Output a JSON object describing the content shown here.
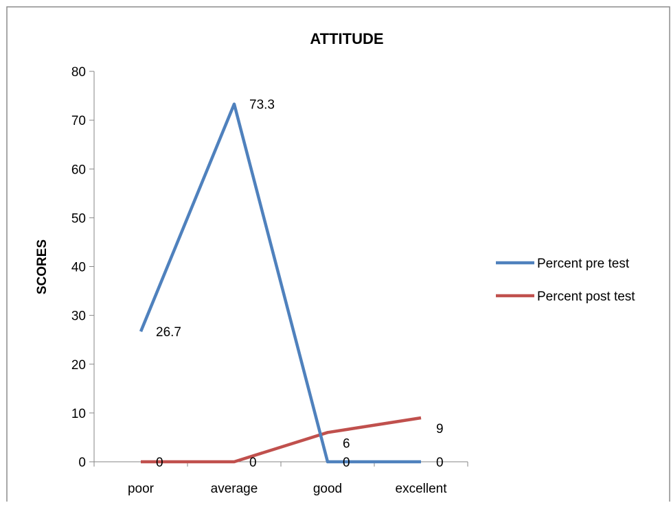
{
  "chart_data": {
    "type": "line",
    "title": "ATTITUDE",
    "xlabel": "",
    "ylabel": "SCORES",
    "categories": [
      "poor",
      "average",
      "good",
      "excellent"
    ],
    "ylim": [
      0,
      80
    ],
    "yticks": [
      0,
      10,
      20,
      30,
      40,
      50,
      60,
      70,
      80
    ],
    "grid": false,
    "legend_position": "right",
    "series": [
      {
        "name": "Percent pre test",
        "color": "#4F81BD",
        "values": [
          26.7,
          73.3,
          0,
          0
        ],
        "labels": [
          "26.7",
          "73.3",
          "0",
          "0"
        ]
      },
      {
        "name": "Percent post test",
        "color": "#C0504D",
        "values": [
          0,
          0,
          6,
          9
        ],
        "labels": [
          "0",
          "0",
          "6",
          "9"
        ]
      }
    ]
  }
}
